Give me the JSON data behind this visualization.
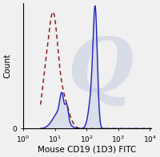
{
  "xlabel": "Mouse CD19 (1D3) FITC",
  "ylabel": "Count",
  "xlim_log": [
    0.6,
    4.05
  ],
  "ylim": [
    0,
    1.02
  ],
  "background_color": "#f0f0f0",
  "solid_color": "#2222bb",
  "dashed_color": "#8B2020",
  "fill_color": "#b8c4e0",
  "fill_alpha": 0.4,
  "xlabel_fontsize": 7.5,
  "ylabel_fontsize": 7.5,
  "tick_fontsize": 6.5,
  "watermark_color": "#c8cfe0",
  "watermark_alpha": 0.6
}
